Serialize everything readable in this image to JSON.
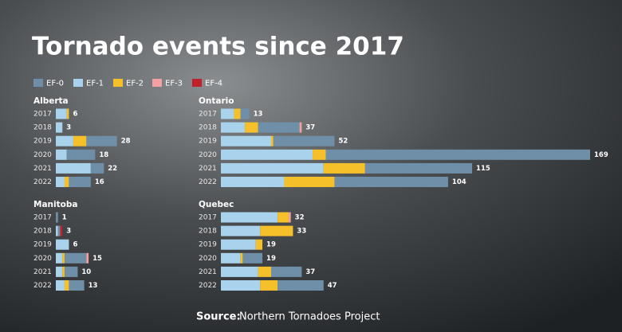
{
  "title": "Tornado events since 2017",
  "legend": [
    {
      "name": "EF-0",
      "color": "#6f8fa8"
    },
    {
      "name": "EF-1",
      "color": "#a9d3ec"
    },
    {
      "name": "EF-2",
      "color": "#f5c02a"
    },
    {
      "name": "EF-3",
      "color": "#f4a0a0"
    },
    {
      "name": "EF-4",
      "color": "#c0202a"
    }
  ],
  "chart_data": [
    {
      "type": "bar",
      "orientation": "horizontal",
      "stacked": true,
      "title": "Alberta",
      "categories": [
        "2017",
        "2018",
        "2019",
        "2020",
        "2021",
        "2022"
      ],
      "series": [
        {
          "values": [
            0,
            0,
            14,
            13,
            6,
            10
          ]
        },
        {
          "values": [
            5,
            3,
            8,
            5,
            16,
            4
          ]
        },
        {
          "values": [
            1,
            0,
            6,
            0,
            0,
            2
          ]
        },
        {
          "values": [
            0,
            0,
            0,
            0,
            0,
            0
          ]
        },
        {
          "values": [
            0,
            0,
            0,
            0,
            0,
            0
          ]
        }
      ],
      "totals": [
        6,
        3,
        28,
        18,
        22,
        16
      ]
    },
    {
      "type": "bar",
      "orientation": "horizontal",
      "stacked": true,
      "title": "Ontario",
      "categories": [
        "2017",
        "2018",
        "2019",
        "2020",
        "2021",
        "2022"
      ],
      "series": [
        {
          "values": [
            4,
            19,
            28,
            121,
            49,
            52
          ]
        },
        {
          "values": [
            6,
            11,
            23,
            42,
            47,
            29
          ]
        },
        {
          "values": [
            3,
            6,
            1,
            6,
            19,
            23
          ]
        },
        {
          "values": [
            0,
            1,
            0,
            0,
            0,
            0
          ]
        },
        {
          "values": [
            0,
            0,
            0,
            0,
            0,
            0
          ]
        }
      ],
      "totals": [
        13,
        37,
        52,
        169,
        115,
        104
      ]
    },
    {
      "type": "bar",
      "orientation": "horizontal",
      "stacked": true,
      "title": "Manitoba",
      "categories": [
        "2017",
        "2018",
        "2019",
        "2020",
        "2021",
        "2022"
      ],
      "series": [
        {
          "values": [
            1,
            1,
            0,
            10,
            6,
            7
          ]
        },
        {
          "values": [
            0,
            1,
            6,
            3,
            3,
            4
          ]
        },
        {
          "values": [
            0,
            0,
            0,
            1,
            1,
            2
          ]
        },
        {
          "values": [
            0,
            0,
            0,
            1,
            0,
            0
          ]
        },
        {
          "values": [
            0,
            1,
            0,
            0,
            0,
            0
          ]
        }
      ],
      "totals": [
        1,
        3,
        6,
        15,
        10,
        13
      ]
    },
    {
      "type": "bar",
      "orientation": "horizontal",
      "stacked": true,
      "title": "Quebec",
      "categories": [
        "2017",
        "2018",
        "2019",
        "2020",
        "2021",
        "2022"
      ],
      "series": [
        {
          "values": [
            0,
            0,
            0,
            9,
            14,
            21
          ]
        },
        {
          "values": [
            26,
            18,
            16,
            9,
            17,
            18
          ]
        },
        {
          "values": [
            5,
            15,
            3,
            1,
            6,
            8
          ]
        },
        {
          "values": [
            1,
            0,
            0,
            0,
            0,
            0
          ]
        },
        {
          "values": [
            0,
            0,
            0,
            0,
            0,
            0
          ]
        }
      ],
      "totals": [
        32,
        33,
        19,
        19,
        37,
        47
      ]
    }
  ],
  "source_label": "Source:",
  "source": "Northern Tornadoes Project"
}
